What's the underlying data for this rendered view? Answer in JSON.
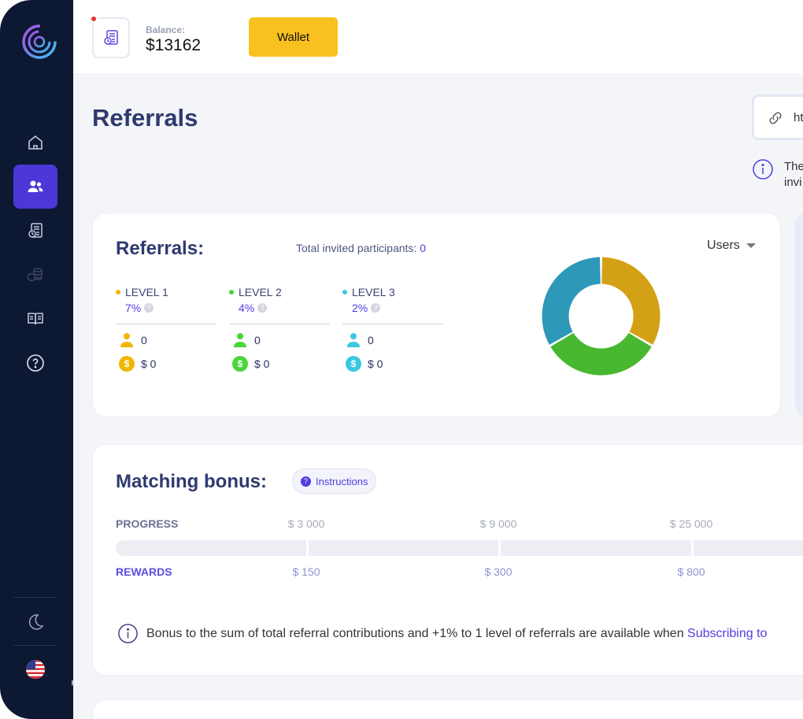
{
  "header": {
    "balance_label": "Balance:",
    "balance_value": "$13162",
    "wallet_label": "Wallet"
  },
  "sidebar": {
    "items": [
      {
        "name": "home",
        "icon": "home-icon"
      },
      {
        "name": "referrals",
        "icon": "users-icon",
        "active": true
      },
      {
        "name": "reports",
        "icon": "document-clock-icon"
      },
      {
        "name": "finance",
        "icon": "coins-icon"
      },
      {
        "name": "knowledge",
        "icon": "book-icon"
      },
      {
        "name": "help",
        "icon": "help-circle-icon"
      }
    ],
    "theme_icon": "moon-icon",
    "language_icon": "us-flag-icon"
  },
  "page": {
    "title": "Referrals",
    "link_text": "ht",
    "hint_line1": "The",
    "hint_line2": "invi"
  },
  "referrals": {
    "title": "Referrals:",
    "total_label": "Total invited participants: ",
    "total_value": "0",
    "dropdown_label": "Users",
    "levels": [
      {
        "label": "LEVEL 1",
        "percent": "7%",
        "users": "0",
        "money": "$ 0",
        "color": "#f2b705"
      },
      {
        "label": "LEVEL 2",
        "percent": "4%",
        "users": "0",
        "money": "$ 0",
        "color": "#4ad53a"
      },
      {
        "label": "LEVEL 3",
        "percent": "2%",
        "users": "0",
        "money": "$ 0",
        "color": "#3cc8e0"
      }
    ],
    "donut": [
      {
        "label": "LEVEL 1",
        "value": 1,
        "color": "#d4a116"
      },
      {
        "label": "LEVEL 2",
        "value": 1,
        "color": "#48b830"
      },
      {
        "label": "LEVEL 3",
        "value": 1,
        "color": "#2e98b8"
      }
    ]
  },
  "matching_bonus": {
    "title": "Matching bonus:",
    "instructions_label": "Instructions",
    "progress_label": "PROGRESS",
    "rewards_label": "REWARDS",
    "thresholds": [
      "$ 3 000",
      "$ 9 000",
      "$ 25 000"
    ],
    "rewards": [
      "$ 150",
      "$ 300",
      "$ 800"
    ],
    "note_text": "Bonus to the sum of total referral contributions and +1% to 1 level of referrals are available when ",
    "note_link": "Subscribing to"
  }
}
